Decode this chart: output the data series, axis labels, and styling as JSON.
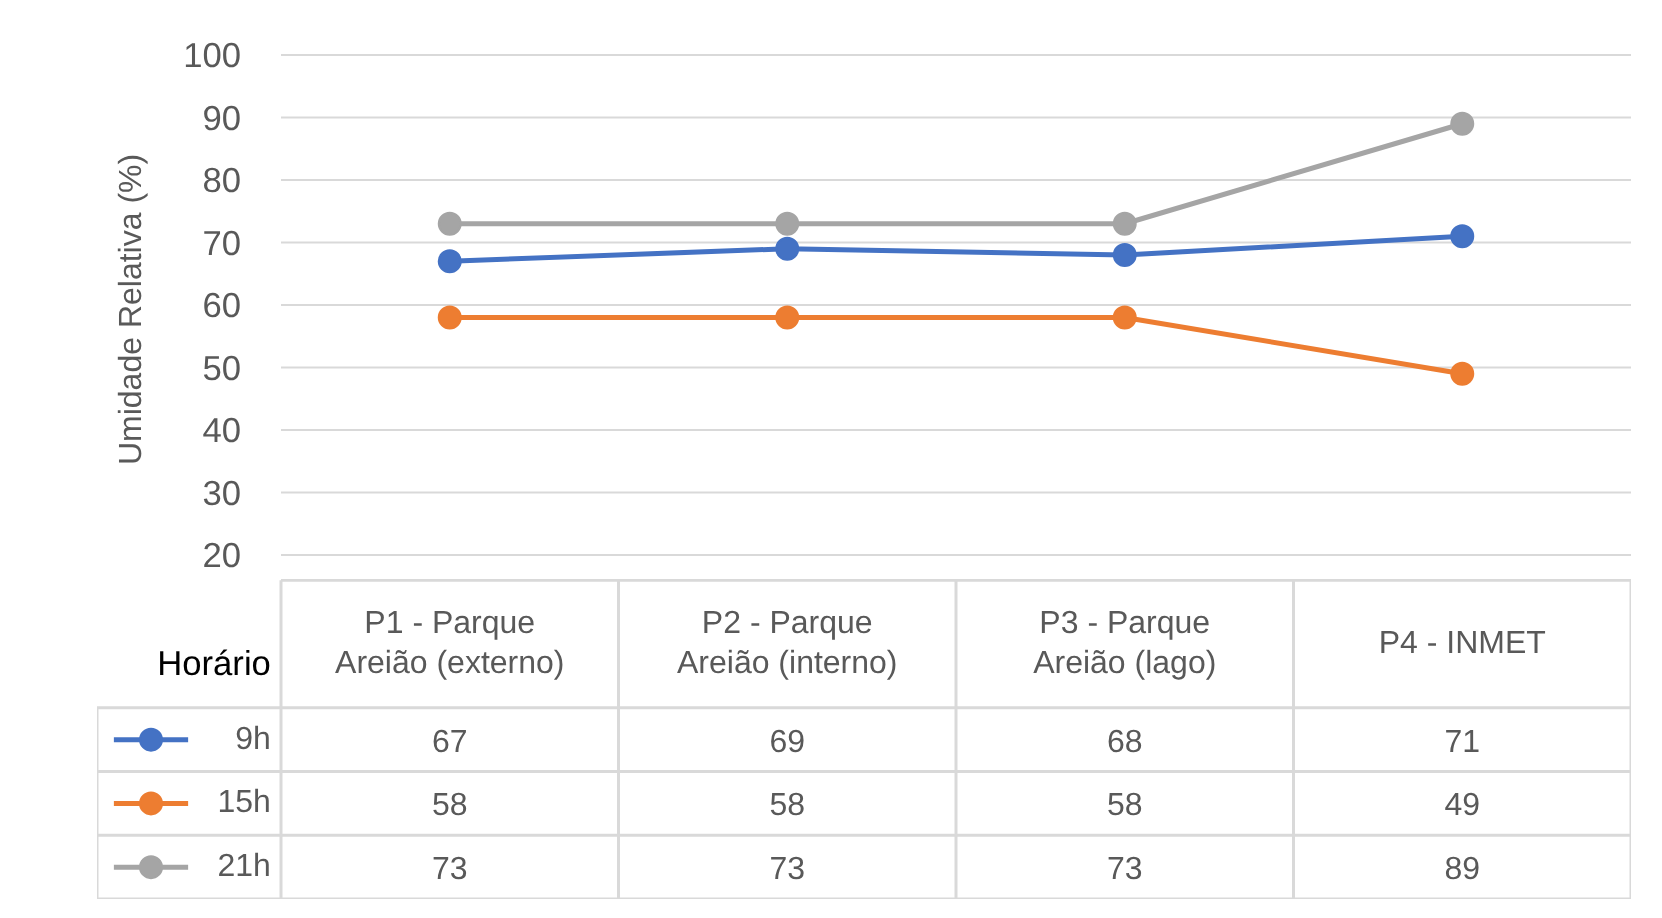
{
  "chart_data": {
    "type": "line",
    "ylabel": "Umidade Relativa  (%)",
    "legend_title": "Horário",
    "categories": [
      "P1 - Parque\nAreião (externo)",
      "P2 - Parque\nAreião (interno)",
      "P3 - Parque\nAreião (lago)",
      "P4 - INMET"
    ],
    "series": [
      {
        "name": "9h",
        "color": "#4472c4",
        "values": [
          67,
          69,
          68,
          71
        ]
      },
      {
        "name": "15h",
        "color": "#ed7d31",
        "values": [
          58,
          58,
          58,
          49
        ]
      },
      {
        "name": "21h",
        "color": "#a5a5a5",
        "values": [
          73,
          73,
          73,
          89
        ]
      }
    ],
    "ylim": [
      20,
      100
    ],
    "yticks": [
      20,
      30,
      40,
      50,
      60,
      70,
      80,
      90,
      100
    ],
    "grid": "y",
    "legend": "bottom",
    "marker": "circle",
    "data_labels": true
  }
}
